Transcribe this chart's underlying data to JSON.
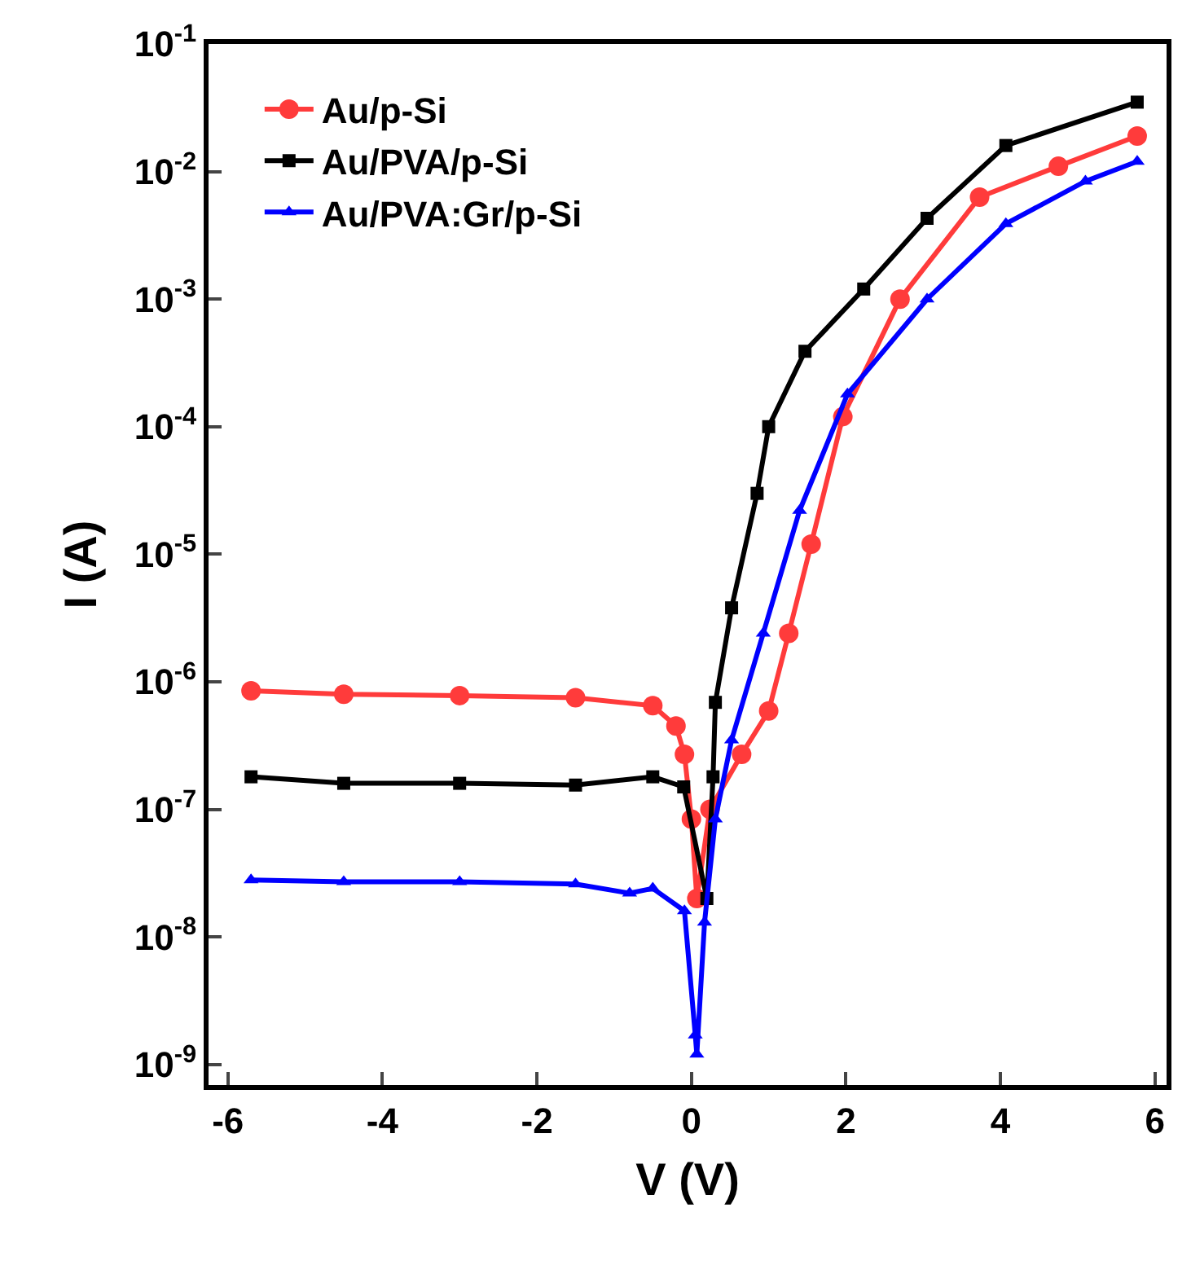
{
  "chart_data": {
    "type": "line",
    "xlabel": "V (V)",
    "ylabel": "I (A)",
    "log": "y",
    "xlim": [
      -6.25,
      6.15
    ],
    "xticks": [
      -6,
      -4,
      -2,
      0,
      2,
      4,
      6
    ],
    "ylim": [
      6.9e-10,
      0.1
    ],
    "yticks": [
      {
        "value": 1e-09,
        "label": "10$^{-9}$"
      },
      {
        "value": 1e-08,
        "label": "10$^{-8}$"
      },
      {
        "value": 1e-07,
        "label": "10$^{-7}$"
      },
      {
        "value": 1e-06,
        "label": "10$^{-6}$"
      },
      {
        "value": 1e-05,
        "label": "10$^{-5}$"
      },
      {
        "value": 0.0001,
        "label": "10$^{-4}$"
      },
      {
        "value": 0.001,
        "label": "10$^{-3}$"
      },
      {
        "value": 0.01,
        "label": "10$^{-2}$"
      },
      {
        "value": 0.1,
        "label": "10$^{-1}$"
      }
    ],
    "legend": "top left",
    "line_style": "solid",
    "series": [
      {
        "name": "Au/p-Si",
        "color": "#ff3b3b",
        "marker": "circle",
        "x": [
          -5.7,
          -4.5,
          -3,
          -1.5,
          -0.5,
          -0.2,
          -0.09,
          0.0,
          0.07,
          0.24,
          0.65,
          1.0,
          1.26,
          1.55,
          1.96,
          2.7,
          3.73,
          4.75,
          5.77
        ],
        "values": [
          8.5e-07,
          8e-07,
          7.8e-07,
          7.5e-07,
          6.5e-07,
          4.5e-07,
          2.7e-07,
          8.4e-08,
          2e-08,
          1e-07,
          2.7e-07,
          5.9e-07,
          2.4e-06,
          1.2e-05,
          0.00012,
          0.001,
          0.0063,
          0.011,
          0.019
        ]
      },
      {
        "name": "Au/PVA/p-Si",
        "color": "#000000",
        "marker": "square",
        "x": [
          -5.7,
          -4.5,
          -3,
          -1.5,
          -0.5,
          -0.1,
          0.2,
          0.28,
          0.31,
          0.52,
          0.85,
          1.0,
          1.47,
          2.23,
          3.05,
          4.07,
          5.77
        ],
        "values": [
          1.8e-07,
          1.6e-07,
          1.6e-07,
          1.55e-07,
          1.8e-07,
          1.5e-07,
          2e-08,
          1.8e-07,
          6.9e-07,
          3.8e-06,
          3e-05,
          0.0001,
          0.00039,
          0.0012,
          0.0043,
          0.016,
          0.035
        ]
      },
      {
        "name": "Au/PVA:Gr/p-Si",
        "color": "#0000ff",
        "marker": "triangle",
        "x": [
          -5.7,
          -4.5,
          -3,
          -1.5,
          -0.8,
          -0.5,
          -0.09,
          0.05,
          0.07,
          0.17,
          0.31,
          0.52,
          0.93,
          1.4,
          2.02,
          3.05,
          4.07,
          5.1,
          5.77
        ],
        "values": [
          2.8e-08,
          2.7e-08,
          2.7e-08,
          2.6e-08,
          2.2e-08,
          2.4e-08,
          1.6e-08,
          1.7e-09,
          1.2e-09,
          1.3e-08,
          8.4e-08,
          3.5e-07,
          2.4e-06,
          2.2e-05,
          0.00018,
          0.001,
          0.0039,
          0.0084,
          0.012
        ]
      }
    ]
  }
}
